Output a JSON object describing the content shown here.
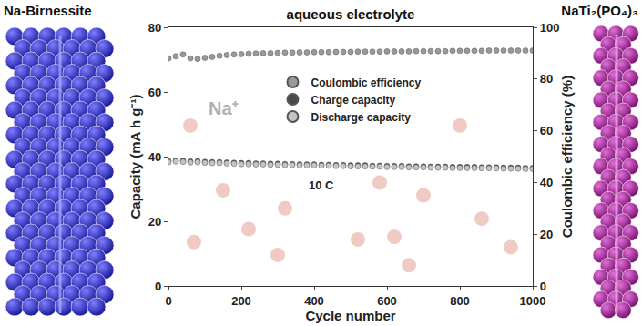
{
  "chart_data": {
    "type": "scatter",
    "title": "aqueous electrolyte",
    "x_label": "Cycle number",
    "y_label": "Capacity (mA h g⁻¹)",
    "y2_label": "Coulombic efficiency (%)",
    "side_labels": {
      "left": "Na-Birnessite",
      "right": "NaTi₂(PO₄)₃"
    },
    "annotations": [
      {
        "text": "Na⁺",
        "x": 150,
        "y": 55
      },
      {
        "text": "10 C",
        "x": 420,
        "y": 31
      }
    ],
    "x": [
      0,
      20,
      40,
      60,
      80,
      100,
      120,
      140,
      160,
      180,
      200,
      220,
      240,
      260,
      280,
      300,
      320,
      340,
      360,
      380,
      400,
      420,
      440,
      460,
      480,
      500,
      520,
      540,
      560,
      580,
      600,
      620,
      640,
      660,
      680,
      700,
      720,
      740,
      760,
      780,
      800,
      820,
      840,
      860,
      880,
      900,
      920,
      940,
      960,
      980,
      1000
    ],
    "series": [
      {
        "name": "Coulombic efficiency",
        "color": "#9a9a9a",
        "marker": "circle",
        "axis": "y2",
        "values": [
          88.0,
          88.8,
          89.5,
          88.0,
          87.8,
          88.2,
          88.6,
          89.0,
          89.3,
          89.5,
          89.6,
          89.8,
          89.9,
          90.0,
          90.0,
          90.1,
          90.2,
          90.2,
          90.3,
          90.3,
          90.4,
          90.4,
          90.4,
          90.5,
          90.5,
          90.5,
          90.6,
          90.6,
          90.6,
          90.6,
          90.7,
          90.7,
          90.7,
          90.7,
          90.8,
          90.8,
          90.8,
          90.8,
          90.8,
          90.9,
          90.9,
          90.9,
          90.9,
          90.9,
          91.0,
          91.0,
          91.0,
          91.0,
          91.0,
          91.0,
          91.0
        ]
      },
      {
        "name": "Charge capacity",
        "color": "#4a4a4a",
        "marker": "circle",
        "values": [
          38.6,
          38.8,
          38.7,
          38.5,
          38.6,
          38.4,
          38.3,
          38.3,
          38.2,
          38.1,
          38.0,
          38.0,
          37.9,
          37.9,
          37.8,
          37.8,
          37.7,
          37.7,
          37.6,
          37.6,
          37.6,
          37.5,
          37.5,
          37.4,
          37.4,
          37.3,
          37.3,
          37.3,
          37.2,
          37.2,
          37.1,
          37.1,
          37.1,
          37.0,
          37.0,
          37.0,
          36.9,
          36.9,
          36.9,
          36.8,
          36.8,
          36.8,
          36.8,
          36.7,
          36.7,
          36.7,
          36.6,
          36.6,
          36.6,
          36.5,
          36.5
        ]
      },
      {
        "name": "Discharge capacity",
        "color": "#c4c4c4",
        "marker": "circle",
        "values": [
          38.3,
          38.5,
          38.4,
          38.2,
          38.3,
          38.1,
          38.0,
          38.0,
          37.9,
          37.8,
          37.7,
          37.7,
          37.6,
          37.6,
          37.5,
          37.5,
          37.4,
          37.4,
          37.3,
          37.3,
          37.3,
          37.2,
          37.2,
          37.1,
          37.1,
          37.0,
          37.0,
          37.0,
          36.9,
          36.9,
          36.8,
          36.8,
          36.8,
          36.7,
          36.7,
          36.7,
          36.6,
          36.6,
          36.6,
          36.5,
          36.5,
          36.5,
          36.5,
          36.4,
          36.4,
          36.4,
          36.3,
          36.3,
          36.3,
          36.2,
          36.2
        ]
      }
    ],
    "xlim": [
      0,
      1000
    ],
    "xticks": [
      0,
      200,
      400,
      600,
      800,
      1000
    ],
    "ylim": [
      0,
      80
    ],
    "yticks": [
      0,
      20,
      40,
      60,
      80
    ],
    "y2lim": [
      0,
      100
    ],
    "y2ticks": [
      0,
      20,
      40,
      60,
      80,
      100
    ],
    "grid": false,
    "legend": "upper center"
  }
}
